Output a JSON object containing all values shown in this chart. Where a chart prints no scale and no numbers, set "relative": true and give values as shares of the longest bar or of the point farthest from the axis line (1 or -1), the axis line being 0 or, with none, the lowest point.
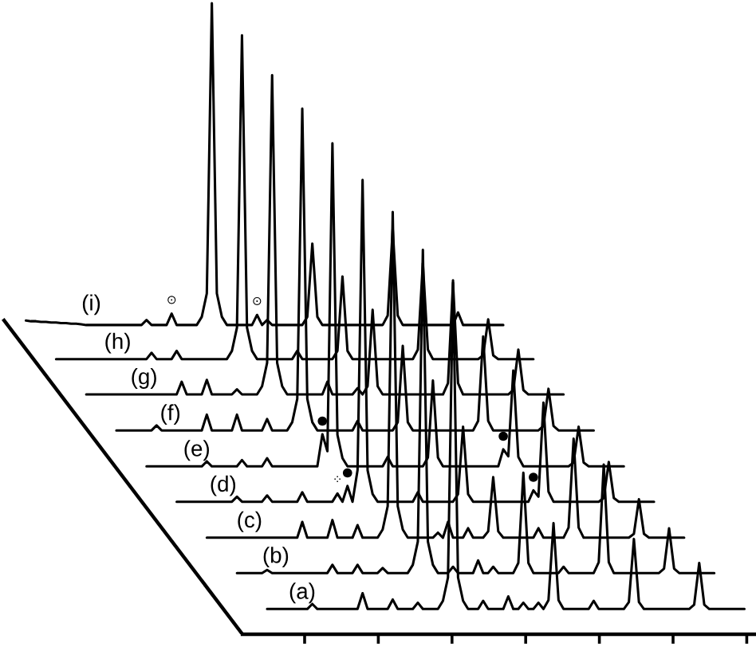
{
  "chart_data": {
    "type": "line",
    "relative": true,
    "line_style": "solid",
    "categories": [
      null,
      null,
      null,
      null,
      null,
      null,
      null,
      null,
      null,
      null,
      null,
      null,
      null,
      null,
      null,
      null,
      null,
      null,
      null,
      null,
      null,
      null,
      null,
      null,
      null,
      null,
      null,
      null,
      null,
      null,
      null,
      null,
      null,
      null,
      null,
      null,
      null,
      null,
      null,
      null,
      null,
      null,
      null,
      null,
      null,
      null,
      null,
      null,
      null,
      null,
      null,
      null,
      null,
      null,
      null,
      null,
      null,
      null,
      null,
      null,
      null,
      null,
      null,
      null,
      null,
      null,
      null,
      null,
      null,
      null,
      null,
      null,
      null,
      null,
      null,
      null,
      null,
      null,
      null,
      null,
      null,
      null,
      null,
      null,
      null,
      null,
      null,
      null,
      null,
      null,
      null,
      null,
      null,
      null,
      null,
      null,
      null,
      null,
      null,
      null,
      null,
      null,
      null,
      null,
      null,
      null,
      null,
      null,
      null,
      null,
      null,
      null,
      null,
      null,
      null,
      null,
      null,
      null,
      null,
      null,
      null,
      null,
      null,
      null,
      null,
      null,
      null,
      null,
      null,
      null,
      null,
      null,
      null,
      null,
      null,
      null,
      null,
      null,
      null,
      null,
      null,
      null,
      null,
      null,
      null,
      null,
      null,
      null,
      null
    ],
    "series": [
      {
        "name": "(a)",
        "color": "#000000",
        "values": [
          null,
          null,
          null,
          null,
          null,
          null,
          null,
          null,
          null,
          null,
          null,
          null,
          null,
          null,
          null,
          null,
          null,
          null,
          null,
          null,
          null,
          null,
          null,
          null,
          null,
          null,
          null,
          null,
          null,
          null,
          null,
          null,
          null,
          null,
          null,
          null,
          null,
          null,
          null,
          null,
          null,
          null,
          null,
          null,
          null,
          null,
          null,
          null,
          null,
          null,
          null,
          0.04,
          0.04,
          0.04,
          0.04,
          0.04,
          0.04,
          0.04,
          0.04,
          0.04,
          0.048,
          0.04,
          0.04,
          0.04,
          0.04,
          0.04,
          0.04,
          0.04,
          0.04,
          0.04,
          0.065,
          0.04,
          0.04,
          0.04,
          0.04,
          0.04,
          0.055,
          0.04,
          0.04,
          0.04,
          0.04,
          0.05,
          0.04,
          0.04,
          0.04,
          0.04,
          0.053,
          0.09,
          0.561,
          0.09,
          0.053,
          0.04,
          0.04,
          0.04,
          0.053,
          0.04,
          0.04,
          0.04,
          0.04,
          0.06,
          0.04,
          0.04,
          0.05,
          0.04,
          0.04,
          0.05,
          0.04,
          0.054,
          0.176,
          0.054,
          0.04,
          0.04,
          0.04,
          0.04,
          0.04,
          0.04,
          0.053,
          0.04,
          0.04,
          0.04,
          0.04,
          0.04,
          0.04,
          0.051,
          0.151,
          0.051,
          0.04,
          0.04,
          0.04,
          0.04,
          0.04,
          0.04,
          0.04,
          0.04,
          0.04,
          0.04,
          0.047,
          0.113,
          0.047,
          0.04,
          0.04,
          0.04,
          0.04,
          0.04,
          0.04,
          0.04,
          0.04,
          null,
          null
        ]
      },
      {
        "name": "(b)",
        "color": "#000000",
        "values": [
          null,
          null,
          null,
          null,
          null,
          null,
          null,
          null,
          null,
          null,
          null,
          null,
          null,
          null,
          null,
          null,
          null,
          null,
          null,
          null,
          null,
          null,
          null,
          null,
          null,
          null,
          null,
          null,
          null,
          null,
          null,
          null,
          null,
          null,
          null,
          null,
          null,
          null,
          null,
          null,
          null,
          null,
          null,
          null,
          null,
          0.097,
          0.097,
          0.097,
          0.097,
          0.097,
          0.097,
          0.102,
          0.097,
          0.097,
          0.097,
          0.097,
          0.097,
          0.097,
          0.097,
          0.097,
          0.097,
          0.097,
          0.097,
          0.097,
          0.11,
          0.097,
          0.097,
          0.097,
          0.097,
          0.11,
          0.097,
          0.097,
          0.097,
          0.097,
          0.105,
          0.097,
          0.097,
          0.097,
          0.097,
          0.097,
          0.11,
          0.147,
          0.609,
          0.147,
          0.11,
          0.097,
          0.097,
          0.097,
          0.107,
          0.097,
          0.097,
          0.097,
          0.097,
          0.117,
          0.097,
          0.097,
          0.107,
          0.097,
          0.097,
          0.097,
          0.097,
          0.113,
          0.256,
          0.113,
          0.097,
          0.097,
          0.097,
          0.097,
          0.097,
          0.097,
          0.107,
          0.097,
          0.097,
          0.097,
          0.097,
          0.097,
          0.097,
          0.114,
          0.269,
          0.114,
          0.097,
          0.097,
          0.097,
          0.097,
          0.097,
          0.097,
          0.097,
          0.097,
          0.097,
          0.097,
          0.104,
          0.168,
          0.104,
          0.097,
          0.097,
          0.097,
          0.097,
          0.097,
          0.097,
          0.097,
          0.097,
          null,
          null,
          null,
          null,
          null,
          null,
          null,
          null
        ]
      },
      {
        "name": "(c)",
        "color": "#000000",
        "values": [
          null,
          null,
          null,
          null,
          null,
          null,
          null,
          null,
          null,
          null,
          null,
          null,
          null,
          null,
          null,
          null,
          null,
          null,
          null,
          null,
          null,
          null,
          null,
          null,
          null,
          null,
          null,
          null,
          null,
          null,
          null,
          null,
          null,
          null,
          null,
          null,
          null,
          null,
          null,
          0.153,
          0.153,
          0.153,
          0.153,
          0.153,
          0.153,
          0.153,
          0.153,
          0.153,
          0.153,
          0.153,
          0.153,
          0.153,
          0.153,
          0.153,
          0.153,
          0.153,
          0.153,
          0.153,
          0.178,
          0.153,
          0.153,
          0.153,
          0.153,
          0.153,
          0.181,
          0.153,
          0.153,
          0.153,
          0.153,
          0.173,
          0.153,
          0.153,
          0.153,
          0.153,
          0.166,
          0.203,
          0.669,
          0.203,
          0.166,
          0.153,
          0.153,
          0.153,
          0.153,
          0.153,
          0.153,
          0.161,
          0.153,
          0.178,
          0.153,
          0.153,
          0.153,
          0.168,
          0.153,
          0.153,
          0.153,
          0.163,
          0.249,
          0.163,
          0.153,
          0.153,
          0.153,
          0.153,
          0.153,
          0.153,
          0.153,
          0.168,
          0.153,
          0.153,
          0.153,
          0.153,
          0.153,
          0.169,
          0.31,
          0.169,
          0.153,
          0.153,
          0.153,
          0.153,
          0.153,
          0.153,
          0.153,
          0.153,
          0.153,
          0.153,
          0.159,
          0.214,
          0.159,
          0.153,
          0.153,
          0.153,
          0.153,
          0.153,
          0.153,
          0.153,
          0.153,
          null,
          null,
          null,
          null,
          null,
          null,
          null,
          null,
          null,
          null,
          null,
          null,
          null,
          null
        ]
      },
      {
        "name": "(d)",
        "color": "#000000",
        "values": [
          null,
          null,
          null,
          null,
          null,
          null,
          null,
          null,
          null,
          null,
          null,
          null,
          null,
          null,
          null,
          null,
          null,
          null,
          null,
          null,
          null,
          null,
          null,
          null,
          null,
          null,
          null,
          null,
          null,
          null,
          null,
          null,
          null,
          0.21,
          0.21,
          0.21,
          0.21,
          0.21,
          0.21,
          0.21,
          0.21,
          0.21,
          0.21,
          0.21,
          0.21,
          0.218,
          0.21,
          0.21,
          0.21,
          0.21,
          0.21,
          0.22,
          0.21,
          0.21,
          0.21,
          0.21,
          0.21,
          0.21,
          0.225,
          0.21,
          0.21,
          0.21,
          0.21,
          0.21,
          0.21,
          0.223,
          0.21,
          0.235,
          0.21,
          0.26,
          0.72,
          0.26,
          0.222,
          0.21,
          0.21,
          0.21,
          0.21,
          0.21,
          0.21,
          0.21,
          0.21,
          0.225,
          0.21,
          0.21,
          0.21,
          0.21,
          0.21,
          0.21,
          0.21,
          0.222,
          0.329,
          0.222,
          0.21,
          0.21,
          0.21,
          0.21,
          0.21,
          0.21,
          0.21,
          0.21,
          0.21,
          0.21,
          0.21,
          0.21,
          0.228,
          0.218,
          0.367,
          0.226,
          0.21,
          0.21,
          0.21,
          0.21,
          0.21,
          0.21,
          0.21,
          0.21,
          0.21,
          0.21,
          0.216,
          0.273,
          0.216,
          0.21,
          0.21,
          0.21,
          0.21,
          0.21,
          0.21,
          0.21,
          0.21,
          null,
          null,
          null,
          null,
          null,
          null,
          null,
          null,
          null,
          null,
          null,
          null,
          null,
          null,
          null,
          null,
          null,
          null,
          null,
          null
        ]
      },
      {
        "name": "(e)",
        "color": "#000000",
        "values": [
          null,
          null,
          null,
          null,
          null,
          null,
          null,
          null,
          null,
          null,
          null,
          null,
          null,
          null,
          null,
          null,
          null,
          null,
          null,
          null,
          null,
          null,
          null,
          null,
          null,
          null,
          null,
          0.266,
          0.266,
          0.266,
          0.266,
          0.266,
          0.266,
          0.266,
          0.266,
          0.266,
          0.266,
          0.266,
          0.266,
          0.274,
          0.266,
          0.266,
          0.266,
          0.266,
          0.266,
          0.266,
          0.276,
          0.266,
          0.266,
          0.266,
          0.266,
          0.279,
          0.266,
          0.266,
          0.266,
          0.266,
          0.266,
          0.266,
          0.266,
          0.266,
          0.266,
          0.266,
          0.317,
          0.29,
          0.778,
          0.316,
          0.279,
          0.266,
          0.266,
          0.266,
          0.266,
          0.266,
          0.266,
          0.266,
          0.266,
          0.281,
          0.266,
          0.266,
          0.266,
          0.266,
          0.266,
          0.266,
          0.266,
          0.28,
          0.402,
          0.28,
          0.266,
          0.266,
          0.266,
          0.266,
          0.266,
          0.266,
          0.266,
          0.266,
          0.266,
          0.266,
          0.266,
          0.266,
          0.293,
          0.282,
          0.418,
          0.281,
          0.266,
          0.266,
          0.266,
          0.266,
          0.266,
          0.266,
          0.266,
          0.266,
          0.266,
          0.266,
          0.272,
          0.329,
          0.272,
          0.266,
          0.266,
          0.266,
          0.266,
          0.266,
          0.266,
          0.266,
          0.266,
          null,
          null,
          null,
          null,
          null,
          null,
          null,
          null,
          null,
          null,
          null,
          null,
          null,
          null,
          null,
          null,
          null,
          null,
          null,
          null,
          null,
          null,
          null,
          null,
          null,
          null
        ]
      },
      {
        "name": "(f)",
        "color": "#000000",
        "values": [
          null,
          null,
          null,
          null,
          null,
          null,
          null,
          null,
          null,
          null,
          null,
          null,
          null,
          null,
          null,
          null,
          null,
          null,
          null,
          null,
          null,
          0.323,
          0.323,
          0.323,
          0.323,
          0.323,
          0.323,
          0.323,
          0.323,
          0.331,
          0.323,
          0.323,
          0.323,
          0.323,
          0.323,
          0.323,
          0.323,
          0.323,
          0.323,
          0.348,
          0.323,
          0.323,
          0.323,
          0.323,
          0.323,
          0.348,
          0.323,
          0.323,
          0.323,
          0.323,
          0.323,
          0.341,
          0.323,
          0.323,
          0.323,
          0.323,
          0.336,
          0.373,
          0.833,
          0.373,
          0.336,
          0.323,
          0.323,
          0.323,
          0.323,
          0.323,
          0.323,
          0.323,
          0.323,
          0.338,
          0.323,
          0.323,
          0.323,
          0.323,
          0.323,
          0.323,
          0.323,
          0.336,
          0.457,
          0.336,
          0.323,
          0.323,
          0.323,
          0.323,
          0.323,
          0.323,
          0.323,
          0.323,
          0.323,
          0.323,
          0.323,
          0.323,
          0.323,
          0.338,
          0.472,
          0.338,
          0.323,
          0.323,
          0.323,
          0.323,
          0.323,
          0.323,
          0.323,
          0.323,
          0.323,
          0.323,
          0.33,
          0.389,
          0.33,
          0.323,
          0.323,
          0.323,
          0.323,
          0.323,
          0.323,
          0.323,
          0.323,
          null,
          null,
          null,
          null,
          null,
          null,
          null,
          null,
          null,
          null,
          null,
          null,
          null,
          null,
          null,
          null,
          null,
          null,
          null,
          null,
          null,
          null,
          null,
          null,
          null,
          null,
          null,
          null,
          null,
          null,
          null,
          null
        ]
      },
      {
        "name": "(g)",
        "color": "#000000",
        "values": [
          null,
          null,
          null,
          null,
          null,
          null,
          null,
          null,
          null,
          null,
          null,
          null,
          null,
          null,
          null,
          0.38,
          0.38,
          0.38,
          0.38,
          0.38,
          0.38,
          0.38,
          0.38,
          0.38,
          0.38,
          0.38,
          0.38,
          0.38,
          0.38,
          0.38,
          0.38,
          0.38,
          0.38,
          0.38,
          0.4,
          0.38,
          0.38,
          0.38,
          0.38,
          0.403,
          0.38,
          0.38,
          0.38,
          0.38,
          0.38,
          0.388,
          0.38,
          0.38,
          0.38,
          0.38,
          0.393,
          0.43,
          0.886,
          0.43,
          0.393,
          0.38,
          0.38,
          0.38,
          0.38,
          0.38,
          0.38,
          0.38,
          0.38,
          0.4,
          0.38,
          0.38,
          0.38,
          0.38,
          0.38,
          0.39,
          0.38,
          0.393,
          0.514,
          0.393,
          0.38,
          0.38,
          0.38,
          0.38,
          0.38,
          0.38,
          0.38,
          0.38,
          0.38,
          0.38,
          0.38,
          0.38,
          0.38,
          0.398,
          0.557,
          0.398,
          0.38,
          0.38,
          0.38,
          0.38,
          0.38,
          0.38,
          0.38,
          0.38,
          0.38,
          0.38,
          0.387,
          0.451,
          0.387,
          0.38,
          0.38,
          0.38,
          0.38,
          0.38,
          0.38,
          0.38,
          0.38,
          null,
          null,
          null,
          null,
          null,
          null,
          null,
          null,
          null,
          null,
          null,
          null,
          null,
          null,
          null,
          null,
          null,
          null,
          null,
          null,
          null,
          null,
          null,
          null,
          null,
          null,
          null,
          null,
          null,
          null,
          null,
          null,
          null,
          null,
          null,
          null,
          null,
          null
        ]
      },
      {
        "name": "(h)",
        "color": "#000000",
        "values": [
          null,
          null,
          null,
          null,
          null,
          null,
          null,
          null,
          null,
          0.436,
          0.436,
          0.436,
          0.436,
          0.436,
          0.436,
          0.436,
          0.436,
          0.436,
          0.436,
          0.436,
          0.436,
          0.436,
          0.436,
          0.436,
          0.436,
          0.436,
          0.436,
          0.436,
          0.446,
          0.436,
          0.436,
          0.436,
          0.436,
          0.449,
          0.436,
          0.436,
          0.436,
          0.436,
          0.436,
          0.436,
          0.436,
          0.436,
          0.436,
          0.436,
          0.449,
          0.486,
          0.949,
          0.486,
          0.449,
          0.436,
          0.436,
          0.436,
          0.436,
          0.436,
          0.436,
          0.436,
          0.436,
          0.449,
          0.436,
          0.436,
          0.436,
          0.436,
          0.436,
          0.436,
          0.436,
          0.449,
          0.567,
          0.449,
          0.436,
          0.436,
          0.436,
          0.436,
          0.436,
          0.436,
          0.436,
          0.436,
          0.436,
          0.436,
          0.436,
          0.436,
          0.436,
          0.451,
          0.588,
          0.451,
          0.436,
          0.436,
          0.436,
          0.436,
          0.436,
          0.436,
          0.436,
          0.436,
          0.436,
          0.436,
          0.442,
          0.499,
          0.442,
          0.436,
          0.436,
          0.436,
          0.436,
          0.436,
          0.436,
          0.436,
          0.436,
          null,
          null,
          null,
          null,
          null,
          null,
          null,
          null,
          null,
          null,
          null,
          null,
          null,
          null,
          null,
          null,
          null,
          null,
          null,
          null,
          null,
          null,
          null,
          null,
          null,
          null,
          null,
          null,
          null,
          null,
          null,
          null,
          null,
          null,
          null,
          null,
          null,
          null,
          null,
          null,
          null,
          null,
          null,
          null
        ]
      },
      {
        "name": "(i)",
        "color": "#000000",
        "values": [
          null,
          null,
          null,
          0.497,
          0.496,
          0.496,
          0.495,
          0.495,
          0.494,
          0.494,
          0.493,
          0.493,
          0.492,
          0.492,
          0.491,
          0.49,
          0.49,
          0.49,
          0.49,
          0.49,
          0.49,
          0.49,
          0.49,
          0.49,
          0.49,
          0.49,
          0.49,
          0.498,
          0.49,
          0.49,
          0.49,
          0.49,
          0.508,
          0.49,
          0.49,
          0.49,
          0.49,
          0.49,
          0.503,
          0.54,
          1.0,
          0.54,
          0.503,
          0.49,
          0.49,
          0.49,
          0.49,
          0.49,
          0.49,
          0.506,
          0.49,
          0.498,
          0.49,
          0.49,
          0.49,
          0.49,
          0.49,
          0.49,
          0.49,
          0.503,
          0.619,
          0.503,
          0.49,
          0.49,
          0.49,
          0.49,
          0.49,
          0.49,
          0.49,
          0.49,
          0.49,
          0.49,
          0.49,
          0.49,
          0.49,
          0.505,
          0.642,
          0.505,
          0.49,
          0.49,
          0.49,
          0.49,
          0.49,
          0.49,
          0.49,
          0.49,
          0.49,
          0.49,
          0.49,
          0.51,
          0.49,
          0.49,
          0.49,
          0.49,
          0.49,
          0.49,
          0.49,
          0.49,
          0.49,
          null,
          null,
          null,
          null,
          null,
          null,
          null,
          null,
          null,
          null,
          null,
          null,
          null,
          null,
          null,
          null,
          null,
          null,
          null,
          null,
          null,
          null,
          null,
          null,
          null,
          null,
          null,
          null,
          null,
          null,
          null,
          null,
          null,
          null,
          null,
          null,
          null,
          null,
          null,
          null,
          null,
          null,
          null,
          null,
          null,
          null,
          null,
          null,
          null,
          null
        ]
      }
    ],
    "annotations": [
      {
        "text": "⊙",
        "y": 0.508
      },
      {
        "text": "⊙",
        "y": 0.506
      },
      {
        "text": "●",
        "y": 0.317
      },
      {
        "text": "⁘",
        "y": 0.223
      },
      {
        "text": "●",
        "y": 0.235
      },
      {
        "text": "●",
        "y": 0.293
      },
      {
        "text": "●",
        "y": 0.228
      }
    ]
  }
}
